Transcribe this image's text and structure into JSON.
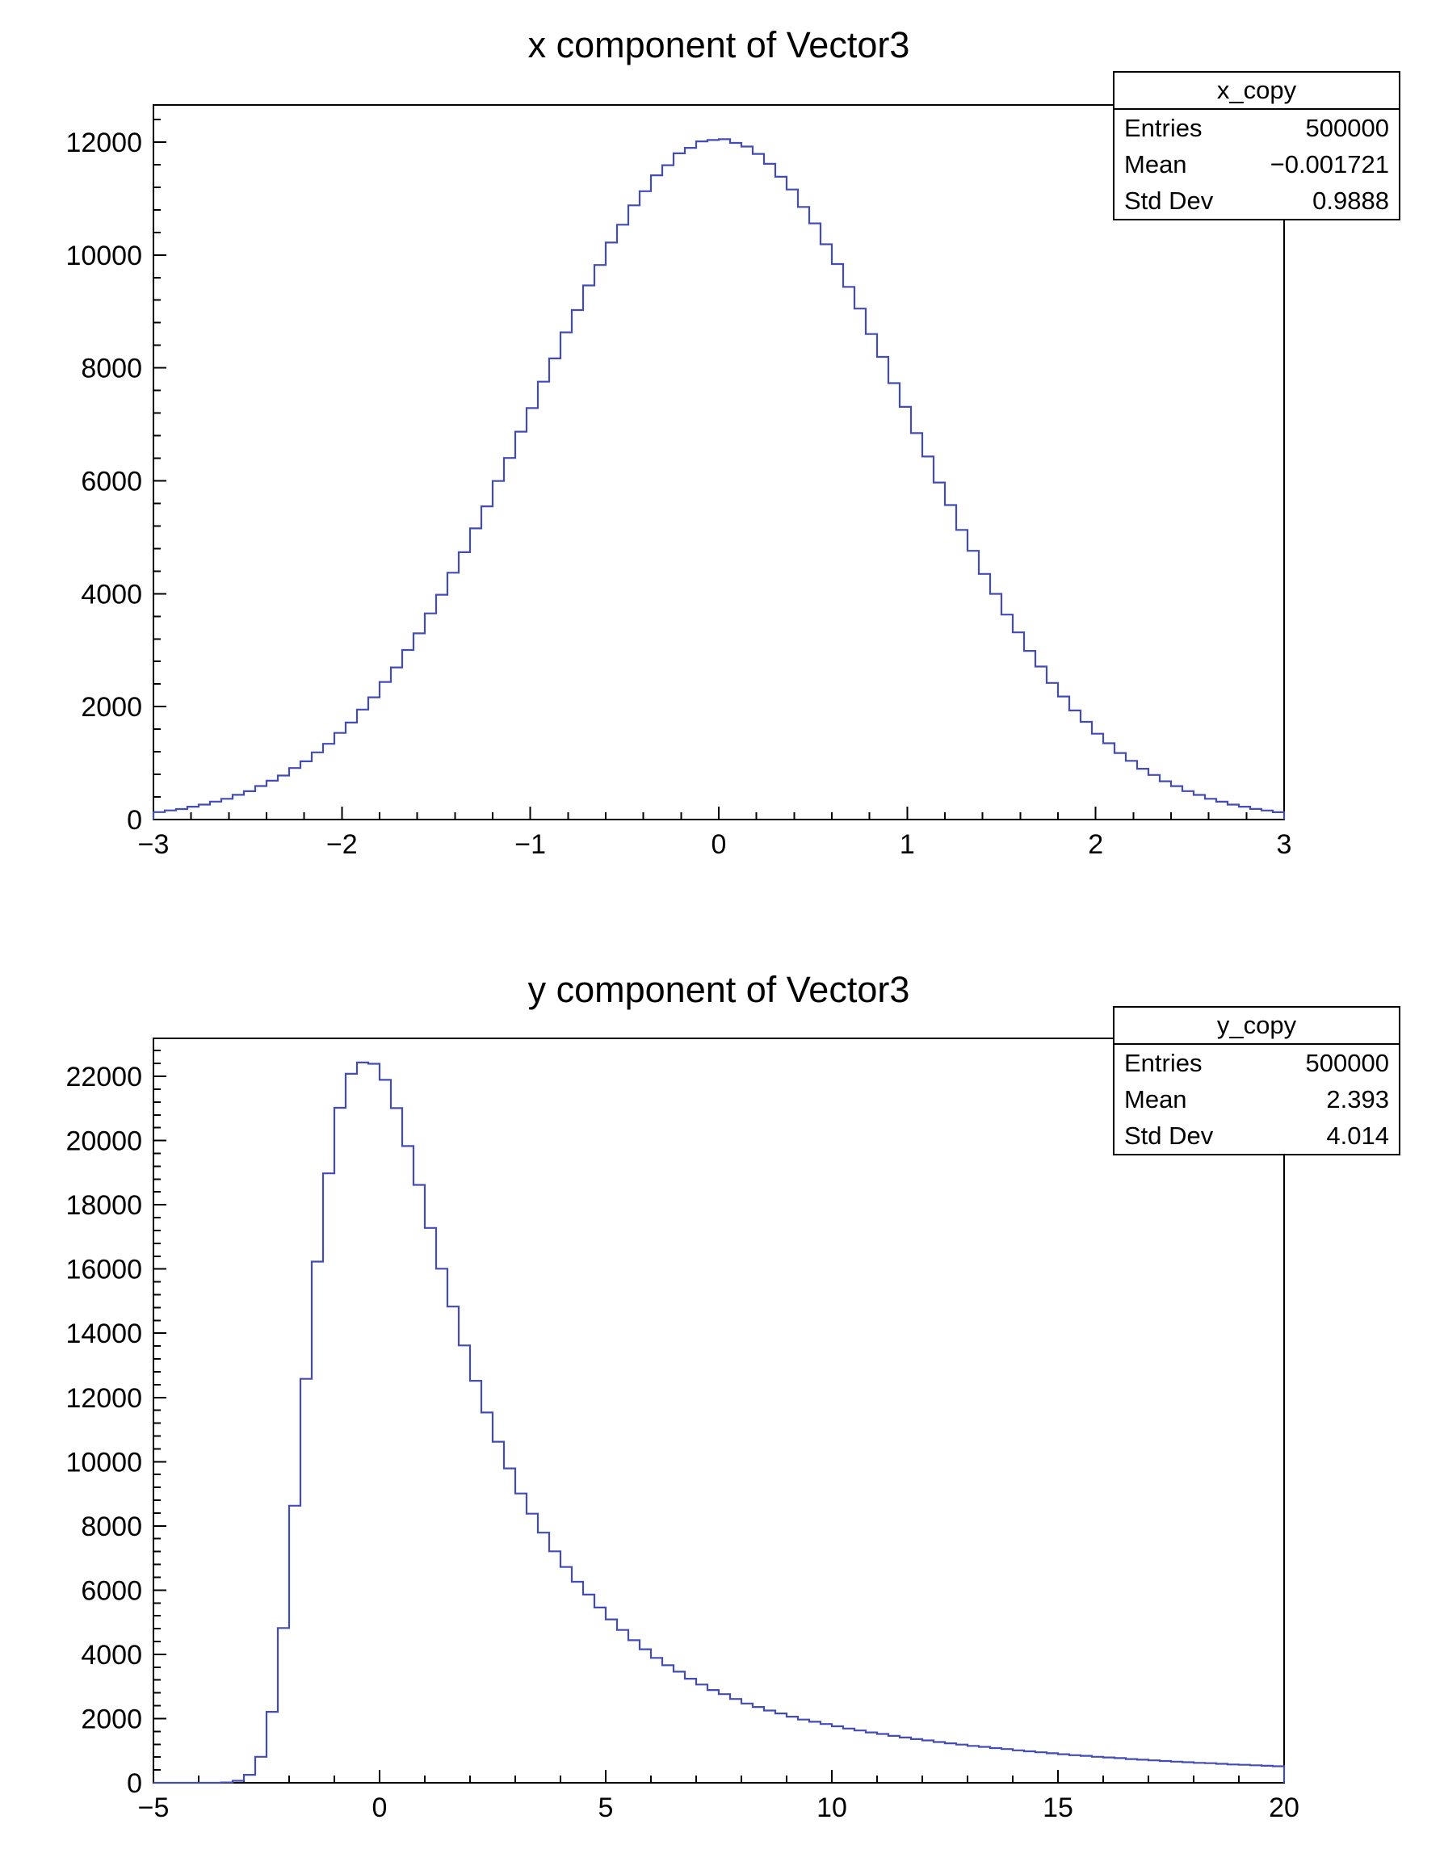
{
  "page": {
    "background": "#ffffff",
    "frame_color": "#000000"
  },
  "chart_data": [
    {
      "type": "histogram",
      "style": "step-outline",
      "title": "x component of Vector3",
      "xlabel": "",
      "ylabel": "",
      "line_color": "#424cb8",
      "x_range": [
        -3,
        3
      ],
      "bins": 100,
      "bin_width": 0.06,
      "ylim": [
        0,
        12657
      ],
      "x_minor_step": 0.2,
      "y_minor_step": 400,
      "x_ticks": [
        {
          "v": -3,
          "label": "−3"
        },
        {
          "v": -2,
          "label": "−2"
        },
        {
          "v": -1,
          "label": "−1"
        },
        {
          "v": 0,
          "label": "0"
        },
        {
          "v": 1,
          "label": "1"
        },
        {
          "v": 2,
          "label": "2"
        },
        {
          "v": 3,
          "label": "3"
        }
      ],
      "y_ticks": [
        {
          "v": 0,
          "label": "0"
        },
        {
          "v": 2000,
          "label": "2000"
        },
        {
          "v": 4000,
          "label": "4000"
        },
        {
          "v": 6000,
          "label": "6000"
        },
        {
          "v": 8000,
          "label": "8000"
        },
        {
          "v": 10000,
          "label": "10000"
        },
        {
          "v": 12000,
          "label": "12000"
        }
      ],
      "values": [
        132,
        161,
        186,
        228,
        264,
        318,
        367,
        438,
        502,
        593,
        688,
        779,
        912,
        1031,
        1190,
        1341,
        1534,
        1718,
        1948,
        2165,
        2437,
        2694,
        3004,
        3298,
        3651,
        3981,
        4372,
        4735,
        5157,
        5548,
        5996,
        6405,
        6870,
        7288,
        7756,
        8168,
        8630,
        9024,
        9460,
        9822,
        10220,
        10536,
        10880,
        11130,
        11412,
        11590,
        11800,
        11898,
        12012,
        12036,
        12051,
        11985,
        11920,
        11790,
        11615,
        11385,
        11160,
        10850,
        10560,
        10190,
        9840,
        9435,
        9050,
        8600,
        8195,
        7730,
        7310,
        6845,
        6430,
        5970,
        5570,
        5130,
        4760,
        4350,
        3998,
        3630,
        3315,
        2988,
        2710,
        2420,
        2180,
        1932,
        1730,
        1520,
        1352,
        1178,
        1040,
        900,
        790,
        678,
        592,
        503,
        436,
        368,
        316,
        265,
        227,
        188,
        160,
        130
      ],
      "stats": {
        "name": "x_copy",
        "rows": [
          {
            "label": "Entries",
            "value": "500000"
          },
          {
            "label": "Mean",
            "value": "−0.001721"
          },
          {
            "label": "Std Dev",
            "value": "0.9888"
          }
        ]
      }
    },
    {
      "type": "histogram",
      "style": "step-outline",
      "title": "y component of Vector3",
      "xlabel": "",
      "ylabel": "",
      "line_color": "#424cb8",
      "x_range": [
        -5,
        20
      ],
      "bins": 100,
      "bin_width": 0.25,
      "ylim": [
        0,
        23183
      ],
      "x_minor_step": 1,
      "y_minor_step": 400,
      "x_ticks": [
        {
          "v": -5,
          "label": "−5"
        },
        {
          "v": 0,
          "label": "0"
        },
        {
          "v": 5,
          "label": "5"
        },
        {
          "v": 10,
          "label": "10"
        },
        {
          "v": 15,
          "label": "15"
        },
        {
          "v": 20,
          "label": "20"
        }
      ],
      "y_ticks": [
        {
          "v": 0,
          "label": "0"
        },
        {
          "v": 2000,
          "label": "2000"
        },
        {
          "v": 4000,
          "label": "4000"
        },
        {
          "v": 6000,
          "label": "6000"
        },
        {
          "v": 8000,
          "label": "8000"
        },
        {
          "v": 10000,
          "label": "10000"
        },
        {
          "v": 12000,
          "label": "12000"
        },
        {
          "v": 14000,
          "label": "14000"
        },
        {
          "v": 16000,
          "label": "16000"
        },
        {
          "v": 18000,
          "label": "18000"
        },
        {
          "v": 20000,
          "label": "20000"
        },
        {
          "v": 22000,
          "label": "22000"
        }
      ],
      "values": [
        0,
        0,
        0,
        0,
        0,
        1,
        9,
        62,
        248,
        810,
        2210,
        4820,
        8630,
        12580,
        16230,
        18980,
        21020,
        22080,
        22430,
        22390,
        21890,
        21010,
        19830,
        18620,
        17280,
        16010,
        14830,
        13620,
        12520,
        11530,
        10620,
        9790,
        9010,
        8380,
        7790,
        7210,
        6720,
        6260,
        5860,
        5460,
        5090,
        4760,
        4440,
        4160,
        3890,
        3660,
        3460,
        3240,
        3060,
        2890,
        2760,
        2610,
        2470,
        2360,
        2250,
        2160,
        2060,
        1970,
        1900,
        1830,
        1760,
        1690,
        1630,
        1570,
        1520,
        1460,
        1410,
        1360,
        1320,
        1270,
        1230,
        1190,
        1150,
        1120,
        1080,
        1050,
        1010,
        980,
        950,
        920,
        890,
        860,
        840,
        810,
        790,
        770,
        740,
        720,
        700,
        680,
        660,
        640,
        620,
        610,
        590,
        570,
        560,
        545,
        530,
        515
      ],
      "stats": {
        "name": "y_copy",
        "rows": [
          {
            "label": "Entries",
            "value": "500000"
          },
          {
            "label": "Mean",
            "value": "2.393"
          },
          {
            "label": "Std Dev",
            "value": "4.014"
          }
        ]
      }
    }
  ]
}
